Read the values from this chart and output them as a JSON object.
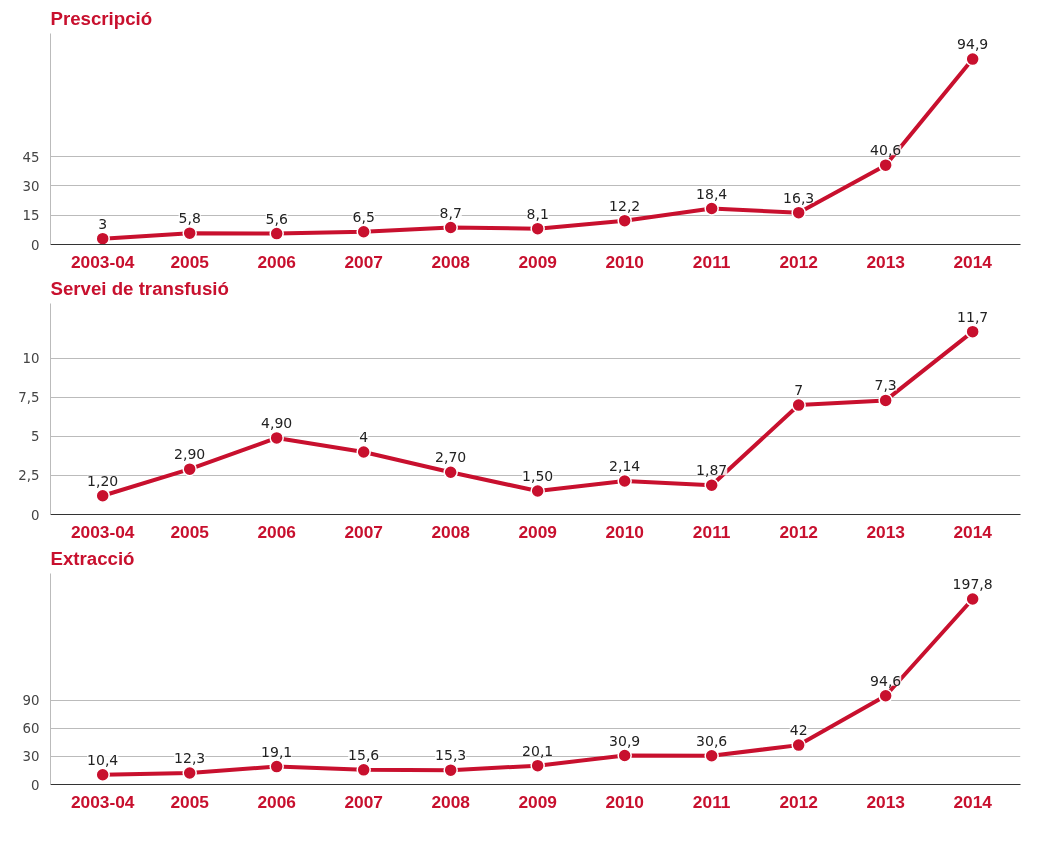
{
  "chart_data": [
    {
      "type": "line",
      "title": "Prescripció",
      "categories": [
        "2003-04",
        "2005",
        "2006",
        "2007",
        "2008",
        "2009",
        "2010",
        "2011",
        "2012",
        "2013",
        "2014"
      ],
      "series": [
        {
          "color": "#c8102e",
          "values": [
            3,
            5.8,
            5.6,
            6.5,
            8.7,
            8.1,
            12.2,
            18.4,
            16.3,
            40.6,
            94.9
          ],
          "value_labels": [
            "3",
            "5,8",
            "5,6",
            "6,5",
            "8,7",
            "8,1",
            "12,2",
            "18,4",
            "16,3",
            "40,6",
            "94,9"
          ]
        }
      ],
      "ylim": [
        0,
        108
      ],
      "yticks": [
        0,
        15,
        30,
        45
      ],
      "grid": "y",
      "marker": "circle",
      "line_style": "solid"
    },
    {
      "type": "line",
      "title": "Servei de transfusió",
      "categories": [
        "2003-04",
        "2005",
        "2006",
        "2007",
        "2008",
        "2009",
        "2010",
        "2011",
        "2012",
        "2013",
        "2014"
      ],
      "series": [
        {
          "color": "#c8102e",
          "values": [
            1.2,
            2.9,
            4.9,
            4,
            2.7,
            1.5,
            2.14,
            1.87,
            7,
            7.3,
            11.7
          ],
          "value_labels": [
            "1,20",
            "2,90",
            "4,90",
            "4",
            "2,70",
            "1,50",
            "2,14",
            "1,87",
            "7",
            "7,3",
            "11,7"
          ]
        }
      ],
      "ylim": [
        0,
        13.5
      ],
      "yticks": [
        0,
        {
          "value": 2.5,
          "label": "2,5"
        },
        5,
        {
          "value": 7.5,
          "label": "7,5"
        },
        10
      ],
      "grid": "y",
      "marker": "circle",
      "line_style": "solid"
    },
    {
      "type": "line",
      "title": "Extracció",
      "categories": [
        "2003-04",
        "2005",
        "2006",
        "2007",
        "2008",
        "2009",
        "2010",
        "2011",
        "2012",
        "2013",
        "2014"
      ],
      "series": [
        {
          "color": "#c8102e",
          "values": [
            10.4,
            12.3,
            19.1,
            15.6,
            15.3,
            20.1,
            30.9,
            30.6,
            42,
            94.6,
            197.8
          ],
          "value_labels": [
            "10,4",
            "12,3",
            "19,1",
            "15,6",
            "15,3",
            "20,1",
            "30,9",
            "30,6",
            "42",
            "94,6",
            "197,8"
          ]
        }
      ],
      "ylim": [
        0,
        225
      ],
      "yticks": [
        0,
        30,
        60,
        90
      ],
      "grid": "y",
      "marker": "circle",
      "line_style": "solid"
    }
  ]
}
